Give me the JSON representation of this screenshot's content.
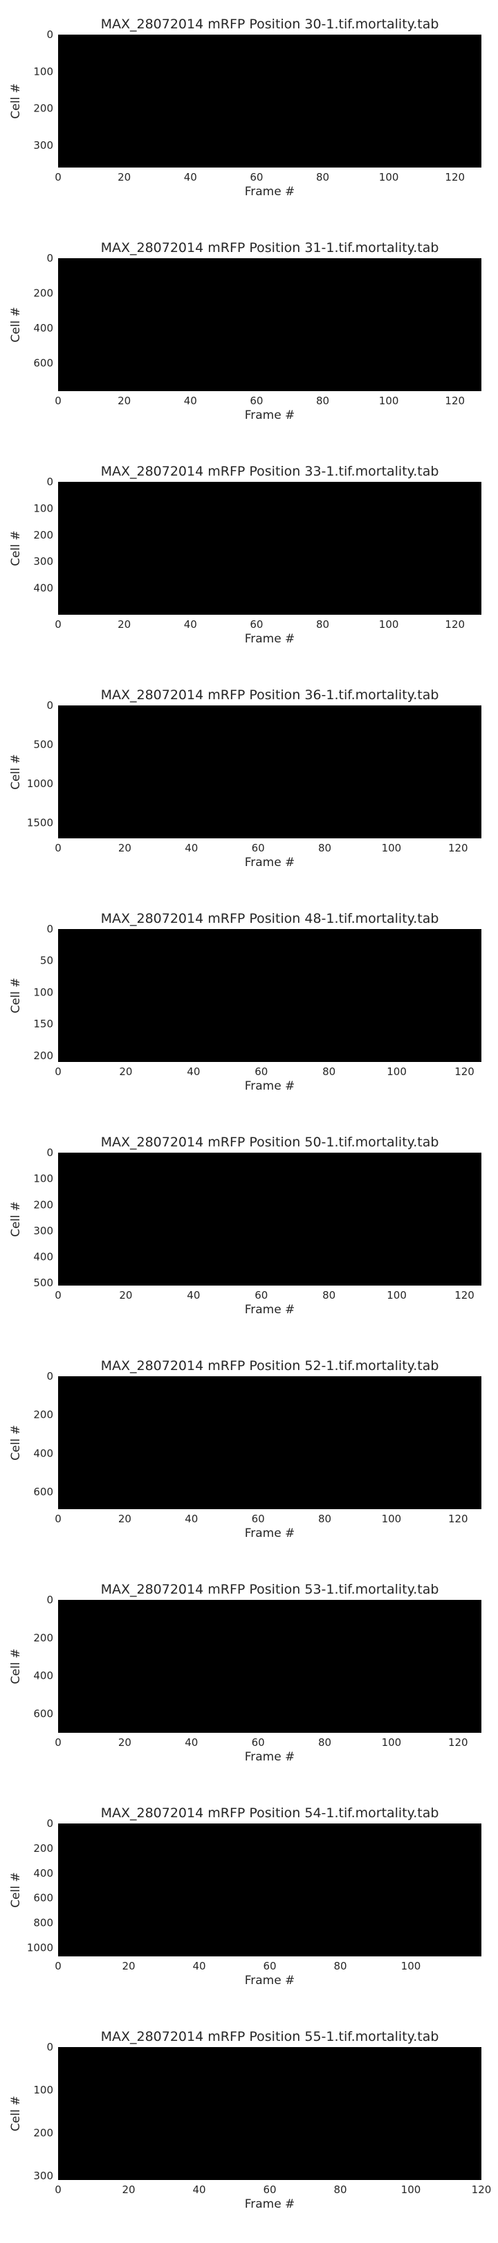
{
  "chart_data": [
    {
      "type": "heatmap",
      "title": "MAX_28072014 mRFP Position 30-1.tif.mortality.tab",
      "xlabel": "Frame #",
      "ylabel": "Cell #",
      "xlim": [
        0,
        128
      ],
      "ylim": [
        0,
        360
      ],
      "x_ticks": [
        0,
        20,
        40,
        60,
        80,
        100,
        120
      ],
      "y_ticks": [
        0,
        100,
        200,
        300
      ],
      "onset_frame_range": [
        45,
        125
      ],
      "colormap": [
        "#000000",
        "#ff0000"
      ]
    },
    {
      "type": "heatmap",
      "title": "MAX_28072014 mRFP Position 31-1.tif.mortality.tab",
      "xlabel": "Frame #",
      "ylabel": "Cell #",
      "xlim": [
        0,
        128
      ],
      "ylim": [
        0,
        760
      ],
      "x_ticks": [
        0,
        20,
        40,
        60,
        80,
        100,
        120
      ],
      "y_ticks": [
        0,
        200,
        400,
        600
      ],
      "onset_frame_range": [
        45,
        125
      ],
      "colormap": [
        "#000000",
        "#ff0000"
      ]
    },
    {
      "type": "heatmap",
      "title": "MAX_28072014 mRFP Position 33-1.tif.mortality.tab",
      "xlabel": "Frame #",
      "ylabel": "Cell #",
      "xlim": [
        0,
        128
      ],
      "ylim": [
        0,
        500
      ],
      "x_ticks": [
        0,
        20,
        40,
        60,
        80,
        100,
        120
      ],
      "y_ticks": [
        0,
        100,
        200,
        300,
        400
      ],
      "onset_frame_range": [
        45,
        125
      ],
      "colormap": [
        "#000000",
        "#ff0000"
      ]
    },
    {
      "type": "heatmap",
      "title": "MAX_28072014 mRFP Position 36-1.tif.mortality.tab",
      "xlabel": "Frame #",
      "ylabel": "Cell #",
      "xlim": [
        0,
        127
      ],
      "ylim": [
        0,
        1700
      ],
      "x_ticks": [
        0,
        20,
        40,
        60,
        80,
        100,
        120
      ],
      "y_ticks": [
        0,
        500,
        1000,
        1500
      ],
      "onset_frame_range": [
        35,
        125
      ],
      "colormap": [
        "#000000",
        "#ff0000"
      ]
    },
    {
      "type": "heatmap",
      "title": "MAX_28072014 mRFP Position 48-1.tif.mortality.tab",
      "xlabel": "Frame #",
      "ylabel": "Cell #",
      "xlim": [
        0,
        125
      ],
      "ylim": [
        0,
        210
      ],
      "x_ticks": [
        0,
        20,
        40,
        60,
        80,
        100,
        120
      ],
      "y_ticks": [
        0,
        50,
        100,
        150,
        200
      ],
      "onset_frame_range": [
        65,
        118
      ],
      "colormap": [
        "#000000",
        "#ff0000"
      ]
    },
    {
      "type": "heatmap",
      "title": "MAX_28072014 mRFP Position 50-1.tif.mortality.tab",
      "xlabel": "Frame #",
      "ylabel": "Cell #",
      "xlim": [
        0,
        125
      ],
      "ylim": [
        0,
        510
      ],
      "x_ticks": [
        0,
        20,
        40,
        60,
        80,
        100,
        120
      ],
      "y_ticks": [
        0,
        100,
        200,
        300,
        400,
        500
      ],
      "onset_frame_range": [
        35,
        118
      ],
      "colormap": [
        "#000000",
        "#ff0000"
      ]
    },
    {
      "type": "heatmap",
      "title": "MAX_28072014 mRFP Position 52-1.tif.mortality.tab",
      "xlabel": "Frame #",
      "ylabel": "Cell #",
      "xlim": [
        0,
        127
      ],
      "ylim": [
        0,
        690
      ],
      "x_ticks": [
        0,
        20,
        40,
        60,
        80,
        100,
        120
      ],
      "y_ticks": [
        0,
        200,
        400,
        600
      ],
      "onset_frame_range": [
        45,
        122
      ],
      "colormap": [
        "#000000",
        "#ff0000"
      ]
    },
    {
      "type": "heatmap",
      "title": "MAX_28072014 mRFP Position 53-1.tif.mortality.tab",
      "xlabel": "Frame #",
      "ylabel": "Cell #",
      "xlim": [
        0,
        127
      ],
      "ylim": [
        0,
        700
      ],
      "x_ticks": [
        0,
        20,
        40,
        60,
        80,
        100,
        120
      ],
      "y_ticks": [
        0,
        200,
        400,
        600
      ],
      "onset_frame_range": [
        40,
        125
      ],
      "colormap": [
        "#000000",
        "#ff0000"
      ]
    },
    {
      "type": "heatmap",
      "title": "MAX_28072014 mRFP Position 54-1.tif.mortality.tab",
      "xlabel": "Frame #",
      "ylabel": "Cell #",
      "xlim": [
        0,
        120
      ],
      "ylim": [
        0,
        1070
      ],
      "x_ticks": [
        0,
        20,
        40,
        60,
        80,
        100
      ],
      "y_ticks": [
        0,
        200,
        400,
        600,
        800,
        1000
      ],
      "onset_frame_range": [
        35,
        115
      ],
      "colormap": [
        "#000000",
        "#ff0000"
      ]
    },
    {
      "type": "heatmap",
      "title": "MAX_28072014 mRFP Position 55-1.tif.mortality.tab",
      "xlabel": "Frame #",
      "ylabel": "Cell #",
      "xlim": [
        0,
        120
      ],
      "ylim": [
        0,
        310
      ],
      "x_ticks": [
        0,
        20,
        40,
        60,
        80,
        100,
        120
      ],
      "y_ticks": [
        0,
        100,
        200,
        300
      ],
      "onset_frame_range": [
        40,
        118
      ],
      "colormap": [
        "#000000",
        "#ff0000"
      ]
    }
  ]
}
